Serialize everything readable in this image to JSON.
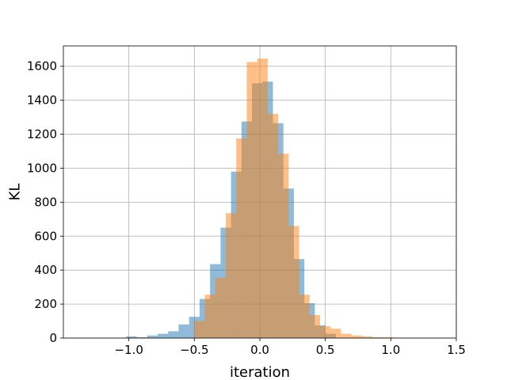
{
  "chart_data": {
    "type": "bar",
    "subtype": "overlapping-histogram",
    "xlabel": "iteration",
    "ylabel": "KL",
    "xlim": [
      -1.5,
      1.5
    ],
    "ylim": [
      0,
      1720
    ],
    "xticks": [
      -1.0,
      -0.5,
      0.0,
      0.5,
      1.0,
      1.5
    ],
    "xtick_labels": [
      "−1.0",
      "−0.5",
      "0.0",
      "0.5",
      "1.0",
      "1.5"
    ],
    "yticks": [
      0,
      200,
      400,
      600,
      800,
      1000,
      1200,
      1400,
      1600
    ],
    "ytick_labels": [
      "0",
      "200",
      "400",
      "600",
      "800",
      "1000",
      "1200",
      "1400",
      "1600"
    ],
    "grid": true,
    "series": [
      {
        "color": "#1f77b4",
        "opacity": 0.5,
        "bin_edges": [
          -1.02,
          -0.94,
          -0.86,
          -0.78,
          -0.7,
          -0.62,
          -0.54,
          -0.46,
          -0.38,
          -0.3,
          -0.22,
          -0.14,
          -0.06,
          0.02,
          0.1,
          0.18,
          0.26,
          0.34,
          0.42,
          0.5,
          0.58
        ],
        "values": [
          10,
          5,
          15,
          25,
          40,
          80,
          125,
          230,
          435,
          650,
          980,
          1275,
          1500,
          1510,
          1265,
          880,
          465,
          205,
          75,
          25
        ]
      },
      {
        "color": "#ff7f0e",
        "opacity": 0.5,
        "bin_edges": [
          -0.5,
          -0.42,
          -0.34,
          -0.26,
          -0.18,
          -0.1,
          -0.02,
          0.06,
          0.14,
          0.22,
          0.3,
          0.38,
          0.46,
          0.54,
          0.62,
          0.7,
          0.78,
          0.86,
          0.94,
          1.02
        ],
        "values": [
          100,
          255,
          355,
          735,
          1175,
          1625,
          1645,
          1320,
          1085,
          660,
          255,
          135,
          70,
          55,
          25,
          15,
          10,
          5,
          5
        ]
      }
    ]
  }
}
